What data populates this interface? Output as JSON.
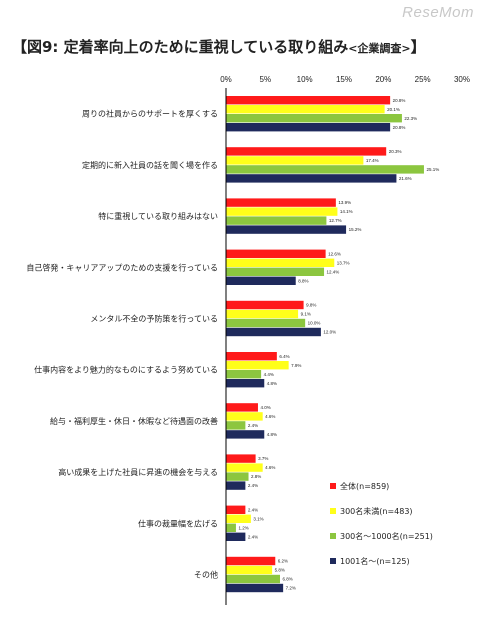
{
  "watermark": "ReseMom",
  "title": {
    "main": "【図9: 定着率向上のために重視している取り組み",
    "sub": "<企業調査>",
    "close": "】"
  },
  "colors": {
    "series0": "#ff1a1a",
    "series1": "#ffff1a",
    "series2": "#8cc63f",
    "series3": "#1f2a5c",
    "axis": "#000000",
    "grid": "#d0d0d0"
  },
  "chart_data": {
    "type": "bar",
    "orientation": "horizontal",
    "xlim": [
      0,
      30
    ],
    "ticks": [
      "0%",
      "5%",
      "10%",
      "15%",
      "20%",
      "25%",
      "30%"
    ],
    "tick_values": [
      0,
      5,
      10,
      15,
      20,
      25,
      30
    ],
    "legend_position": "right",
    "grid": false,
    "categories": [
      "周りの社員からのサポートを厚くする",
      "定期的に新入社員の話を聞く場を作る",
      "特に重視している取り組みはない",
      "自己啓発・キャリアアップのための支援を行っている",
      "メンタル不全の予防策を行っている",
      "仕事内容をより魅力的なものにするよう努めている",
      "給与・福利厚生・休日・休暇など待遇面の改善",
      "高い成果を上げた社員に昇進の機会を与える",
      "仕事の裁量幅を広げる",
      "その他"
    ],
    "series": [
      {
        "name": "全体(n=859)",
        "values": [
          20.8,
          20.3,
          13.9,
          12.6,
          9.8,
          6.4,
          4.0,
          3.7,
          2.4,
          6.2
        ],
        "labels": [
          "20.8%",
          "20.3%",
          "13.9%",
          "12.6%",
          "9.8%",
          "6.4%",
          "4.0%",
          "3.7%",
          "2.4%",
          "6.2%"
        ]
      },
      {
        "name": "300名未満(n=483)",
        "values": [
          20.1,
          17.4,
          14.1,
          13.7,
          9.1,
          7.9,
          4.6,
          4.6,
          3.1,
          5.8
        ],
        "labels": [
          "20.1%",
          "17.4%",
          "14.1%",
          "13.7%",
          "9.1%",
          "7.9%",
          "4.6%",
          "4.6%",
          "3.1%",
          "5.8%"
        ]
      },
      {
        "name": "300名～1000名(n=251)",
        "values": [
          22.3,
          25.1,
          12.7,
          12.4,
          10.0,
          4.4,
          2.4,
          2.8,
          1.2,
          6.8
        ],
        "labels": [
          "22.3%",
          "25.1%",
          "12.7%",
          "12.4%",
          "10.0%",
          "4.4%",
          "2.4%",
          "2.8%",
          "1.2%",
          "6.8%"
        ]
      },
      {
        "name": "1001名～(n=125)",
        "values": [
          20.8,
          21.6,
          15.2,
          8.8,
          12.0,
          4.8,
          4.8,
          2.4,
          2.4,
          7.2
        ],
        "labels": [
          "20.8%",
          "21.6%",
          "15.2%",
          "8.8%",
          "12.0%",
          "4.8%",
          "4.8%",
          "2.4%",
          "2.4%",
          "7.2%"
        ]
      }
    ]
  }
}
